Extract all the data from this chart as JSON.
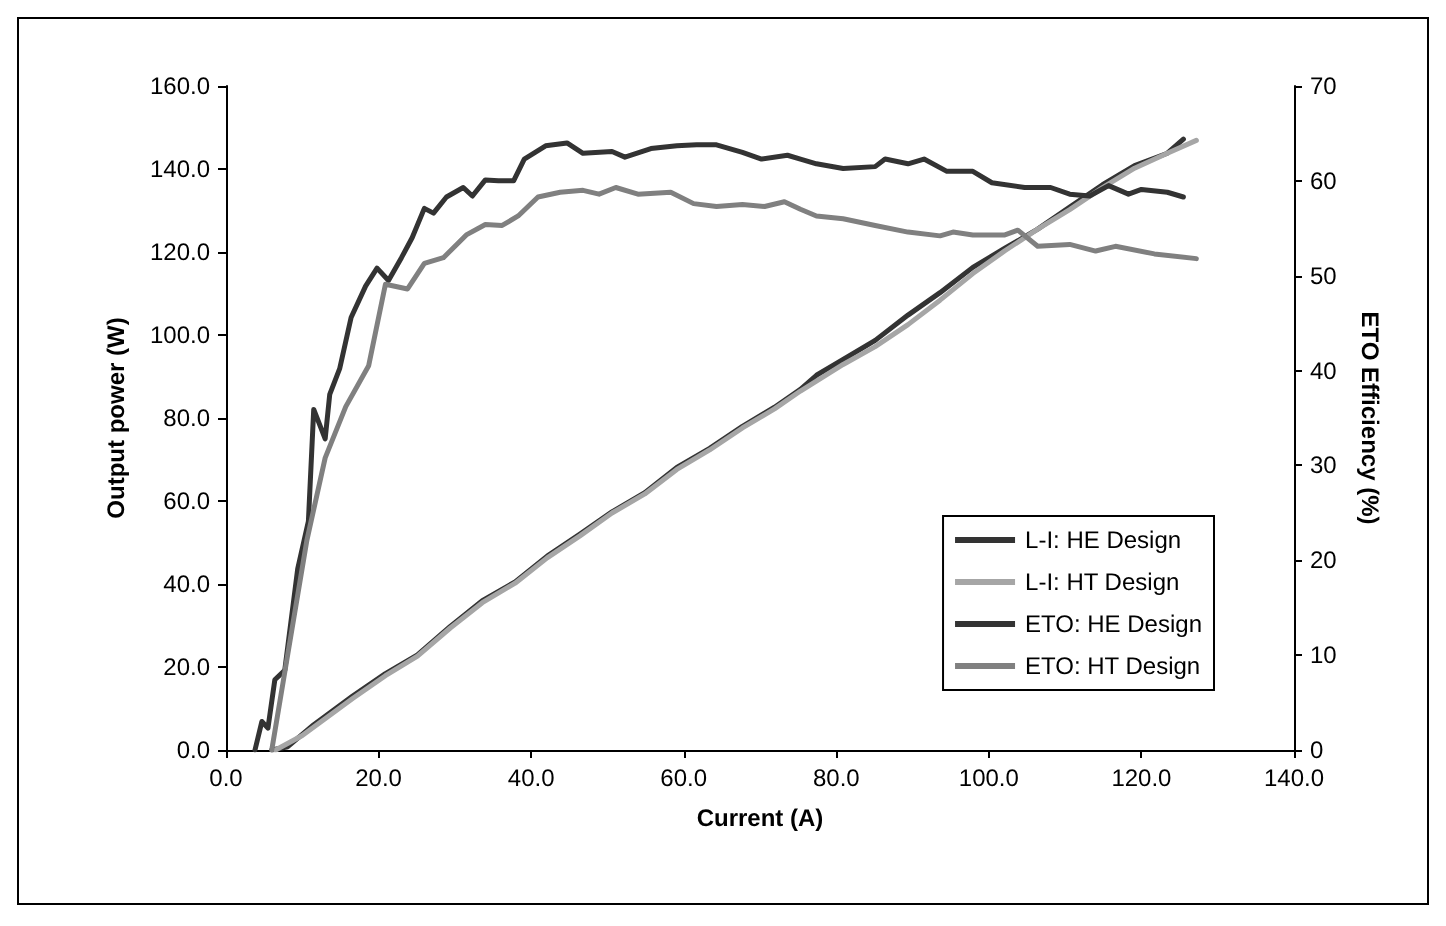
{
  "chart_data": {
    "type": "line",
    "xlabel": "Current (A)",
    "ylabel": "Output power (W)",
    "y2label": "ETO Efficiency (%)",
    "xlim": [
      0,
      140
    ],
    "xticks": [
      {
        "value": 0,
        "label": "0.0"
      },
      {
        "value": 20,
        "label": "20.0"
      },
      {
        "value": 40,
        "label": "40.0"
      },
      {
        "value": 60,
        "label": "60.0"
      },
      {
        "value": 80,
        "label": "80.0"
      },
      {
        "value": 100,
        "label": "100.0"
      },
      {
        "value": 120,
        "label": "120.0"
      },
      {
        "value": 140,
        "label": "140.0"
      }
    ],
    "ylim": [
      0,
      160
    ],
    "yticks": [
      {
        "value": 0,
        "label": "0.0"
      },
      {
        "value": 20,
        "label": "20.0"
      },
      {
        "value": 40,
        "label": "40.0"
      },
      {
        "value": 60,
        "label": "60.0"
      },
      {
        "value": 80,
        "label": "80.0"
      },
      {
        "value": 100,
        "label": "100.0"
      },
      {
        "value": 120,
        "label": "120.0"
      },
      {
        "value": 140,
        "label": "140.0"
      },
      {
        "value": 160,
        "label": "160.0"
      }
    ],
    "y2lim": [
      0,
      70
    ],
    "y2ticks": [
      0,
      10,
      20,
      30,
      40,
      50,
      60,
      70
    ],
    "grid": false,
    "legend": "bottom right",
    "marker": "none",
    "line_style": "solid",
    "series": [
      {
        "name": "L-I: HE Design",
        "color": "#333333",
        "x": [
          6.0,
          8.1,
          11.5,
          16.6,
          20.9,
          25.1,
          29.4,
          33.6,
          37.9,
          42.1,
          46.4,
          50.6,
          54.9,
          59.1,
          63.4,
          67.7,
          71.9,
          75.3,
          77.4,
          80.9,
          85.1,
          89.4,
          93.6,
          97.9,
          102.1,
          106.4,
          110.6,
          114.9,
          119.1,
          123.4,
          125.5
        ],
        "values": [
          0,
          0.8,
          6.1,
          13.0,
          18.4,
          22.9,
          29.8,
          36.0,
          40.5,
          46.7,
          52.0,
          57.4,
          62.0,
          68.1,
          72.7,
          78.0,
          82.6,
          86.9,
          90.3,
          94.1,
          98.7,
          104.8,
          110.2,
          116.3,
          120.9,
          125.5,
          130.8,
          136.2,
          140.8,
          143.8,
          147.2
        ]
      },
      {
        "name": "L-I: HT Design",
        "color": "#a6a6a6",
        "x": [
          6.5,
          10.0,
          16.6,
          20.9,
          25.1,
          29.4,
          33.6,
          37.9,
          42.1,
          46.4,
          50.6,
          54.9,
          59.1,
          63.4,
          67.7,
          71.9,
          75.3,
          80.9,
          85.1,
          89.4,
          93.6,
          97.9,
          102.1,
          106.4,
          110.6,
          114.9,
          119.1,
          123.4,
          127.2
        ],
        "values": [
          0,
          3.5,
          12.4,
          17.9,
          22.6,
          29.4,
          35.5,
          40.2,
          46.3,
          51.6,
          57.1,
          61.7,
          67.6,
          72.3,
          77.6,
          82.2,
          86.5,
          92.9,
          97.2,
          102.5,
          108.4,
          114.8,
          120.3,
          125.5,
          130.2,
          135.5,
          140.2,
          143.8,
          146.9
        ]
      },
      {
        "name": "ETO: HE Design",
        "color": "#333333",
        "axis": "y2",
        "x": [
          3.8,
          4.7,
          5.5,
          6.4,
          7.7,
          9.4,
          10.8,
          11.5,
          13.0,
          13.6,
          14.9,
          16.4,
          18.3,
          19.8,
          21.3,
          23.0,
          24.4,
          26.0,
          27.2,
          28.9,
          31.1,
          32.3,
          34.0,
          35.7,
          37.7,
          39.1,
          41.9,
          44.7,
          46.8,
          50.6,
          52.3,
          55.7,
          59.1,
          61.7,
          64.3,
          67.7,
          70.2,
          73.6,
          75.3,
          77.4,
          80.9,
          85.1,
          86.4,
          89.4,
          91.5,
          94.5,
          97.9,
          100.4,
          104.7,
          108.1,
          110.6,
          113.2,
          115.7,
          118.3,
          120.0,
          123.4,
          125.5
        ],
        "values": [
          0,
          3,
          2.3,
          7.4,
          8.4,
          19.1,
          24.1,
          35.9,
          32.8,
          37.5,
          40.2,
          45.6,
          48.9,
          50.8,
          49.5,
          51.9,
          54.0,
          57.1,
          56.6,
          58.3,
          59.3,
          58.4,
          60.1,
          60.0,
          60.0,
          62.3,
          63.7,
          64.0,
          62.9,
          63.1,
          62.5,
          63.4,
          63.7,
          63.8,
          63.8,
          63.0,
          62.3,
          62.7,
          62.3,
          61.8,
          61.3,
          61.5,
          62.3,
          61.8,
          62.3,
          61.0,
          61.0,
          59.8,
          59.3,
          59.3,
          58.6,
          58.4,
          59.5,
          58.6,
          59.1,
          58.8,
          58.3
        ]
      },
      {
        "name": "ETO: HT Design",
        "color": "#808080",
        "axis": "y2",
        "x": [
          6.0,
          8.1,
          10.6,
          13.0,
          15.7,
          18.7,
          20.9,
          23.8,
          26.0,
          28.5,
          31.5,
          34.0,
          36.2,
          38.3,
          40.9,
          43.8,
          46.8,
          48.9,
          51.1,
          54.0,
          58.3,
          61.3,
          64.3,
          67.7,
          70.6,
          73.2,
          75.3,
          77.4,
          80.9,
          85.1,
          89.4,
          93.6,
          95.3,
          97.9,
          102.1,
          103.8,
          106.4,
          110.6,
          114.0,
          116.6,
          121.7,
          127.2
        ],
        "values": [
          0,
          10.1,
          22.1,
          30.8,
          36.2,
          40.5,
          49.1,
          48.6,
          51.3,
          51.9,
          54.3,
          55.4,
          55.3,
          56.3,
          58.3,
          58.8,
          59.0,
          58.6,
          59.3,
          58.6,
          58.8,
          57.6,
          57.3,
          57.5,
          57.3,
          57.8,
          57.0,
          56.3,
          56.0,
          55.3,
          54.6,
          54.2,
          54.6,
          54.3,
          54.3,
          54.8,
          53.1,
          53.3,
          52.6,
          53.1,
          52.3,
          51.8
        ]
      }
    ]
  }
}
